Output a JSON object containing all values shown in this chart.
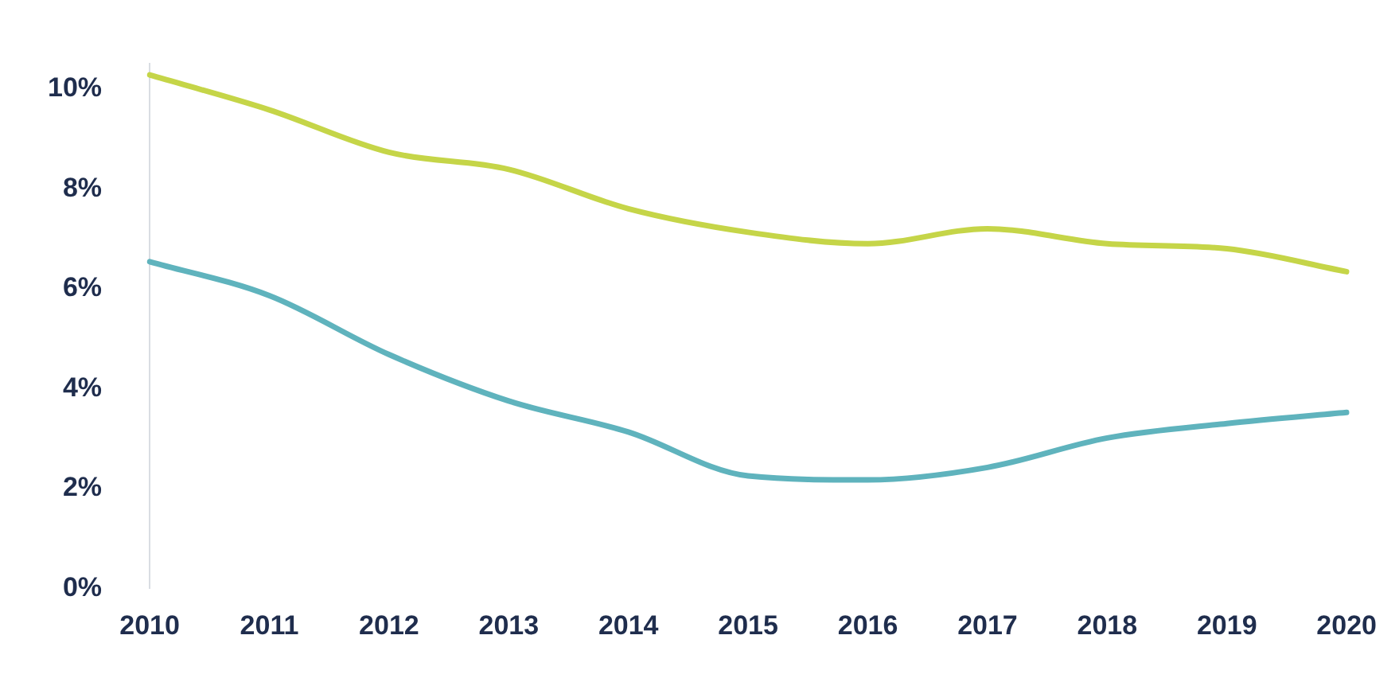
{
  "chart_data": {
    "type": "line",
    "categories": [
      "2010",
      "2011",
      "2012",
      "2013",
      "2014",
      "2015",
      "2016",
      "2017",
      "2018",
      "2019",
      "2020"
    ],
    "series": [
      {
        "color": "#c5d548",
        "values": [
          10.28,
          9.58,
          8.73,
          8.39,
          7.6,
          7.13,
          6.9,
          7.2,
          6.9,
          6.8,
          6.34
        ]
      },
      {
        "color": "#5fb3bd",
        "values": [
          6.54,
          5.86,
          4.68,
          3.75,
          3.13,
          2.25,
          2.17,
          2.42,
          3.01,
          3.3,
          3.52
        ]
      }
    ],
    "ylim": [
      0,
      10.5
    ],
    "yticks": [
      {
        "value": 0,
        "label": "0%"
      },
      {
        "value": 2,
        "label": "2%"
      },
      {
        "value": 4,
        "label": "4%"
      },
      {
        "value": 6,
        "label": "6%"
      },
      {
        "value": 8,
        "label": "8%"
      },
      {
        "value": 10,
        "label": "10%"
      }
    ],
    "grid": false,
    "legend": false,
    "marker": "none",
    "line_style": "solid"
  }
}
